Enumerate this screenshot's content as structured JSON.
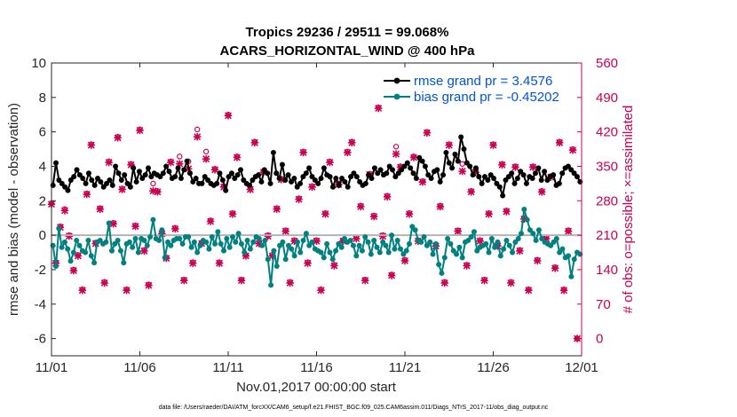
{
  "chart_data": {
    "type": "line",
    "title": "Tropics 29236 / 29511 = 99.068%",
    "subtitle": "ACARS_HORIZONTAL_WIND @ 400 hPa",
    "xlabel": "Nov.01,2017 00:00:00 start",
    "ylabel_left": "rmse and bias (model - observation)",
    "ylabel_right": "# of obs: o=possible; ×=assimilated",
    "footnote": "data file: /Users/raeder/DAI/ATM_forcXX/CAM6_setup/f.e21.FHIST_BGC.f09_025.CAM6assim.011/Diags_NTrS_2017-11/obs_diag_output.nc",
    "xlim": [
      0,
      30
    ],
    "x_ticks": [
      0,
      5,
      10,
      15,
      20,
      25,
      30
    ],
    "x_tick_labels": [
      "11/01",
      "11/06",
      "11/11",
      "11/16",
      "11/21",
      "11/26",
      "12/01"
    ],
    "ylim_left": [
      -7,
      10
    ],
    "y_ticks_left": [
      -6,
      -4,
      -2,
      0,
      2,
      4,
      6,
      8,
      10
    ],
    "ylim_right": [
      -35,
      560
    ],
    "y_ticks_right": [
      0,
      70,
      140,
      210,
      280,
      350,
      420,
      490,
      560
    ],
    "zero_line": 0,
    "colors": {
      "rmse": "#000000",
      "bias": "#008080",
      "obs": "#cc0052",
      "zero": "#b3b3b3"
    },
    "series": [
      {
        "name": "rmse grand pr = 3.4576",
        "axis": "left",
        "color": "#000000",
        "values": [
          2.9,
          4.2,
          3.2,
          3.0,
          2.8,
          2.6,
          3.2,
          3.4,
          3.8,
          3.5,
          3.3,
          3.0,
          3.6,
          3.2,
          2.9,
          3.3,
          3.1,
          2.8,
          3.0,
          3.2,
          2.9,
          4.0,
          3.6,
          3.2,
          3.5,
          3.0,
          2.8,
          3.9,
          3.1,
          3.7,
          3.3,
          3.5,
          3.9,
          3.4,
          3.6,
          3.5,
          3.4,
          3.6,
          4.0,
          3.7,
          3.3,
          3.4,
          3.9,
          3.3,
          3.8,
          4.3,
          3.6,
          3.1,
          3.3,
          3.0,
          3.0,
          3.4,
          3.2,
          3.0,
          2.9,
          3.0,
          3.6,
          3.2,
          2.6,
          3.4,
          3.6,
          3.3,
          3.5,
          3.8,
          3.2,
          3.0,
          2.9,
          3.2,
          3.4,
          3.5,
          3.1,
          3.8,
          3.6,
          3.0,
          4.8,
          3.6,
          3.3,
          4.1,
          3.2,
          3.5,
          3.1,
          3.3,
          2.8,
          3.0,
          3.4,
          3.6,
          3.9,
          3.4,
          3.2,
          3.0,
          3.3,
          3.9,
          3.5,
          3.4,
          2.8,
          3.3,
          2.9,
          3.3,
          3.1,
          2.8,
          3.4,
          3.6,
          3.4,
          3.1,
          2.9,
          3.0,
          3.5,
          3.3,
          3.9,
          3.6,
          3.8,
          3.5,
          3.6,
          4.0,
          3.8,
          3.4,
          3.6,
          3.8,
          4.0,
          4.2,
          3.9,
          3.6,
          3.3,
          4.5,
          4.3,
          4.0,
          3.5,
          3.3,
          3.7,
          3.8,
          3.1,
          3.5,
          4.8,
          4.2,
          3.9,
          4.7,
          4.3,
          5.7,
          5.0,
          4.2,
          4.0,
          3.5,
          3.9,
          3.4,
          3.0,
          3.4,
          3.2,
          3.5,
          3.3,
          3.0,
          2.8,
          2.3,
          3.2,
          3.4,
          3.6,
          3.0,
          3.3,
          3.7,
          3.5,
          3.0,
          3.4,
          3.3,
          3.6,
          3.9,
          3.2,
          3.7,
          3.2,
          3.4,
          3.5,
          2.9,
          3.0,
          3.6,
          3.9,
          4.0,
          3.8,
          3.6,
          3.4,
          3.1
        ]
      },
      {
        "name": "bias grand pr = -0.45202",
        "axis": "left",
        "color": "#008080",
        "values": [
          -0.6,
          -1.8,
          0.4,
          -0.7,
          -0.4,
          -0.8,
          -1.5,
          -1.0,
          -0.3,
          -0.6,
          -0.9,
          -1.0,
          -0.3,
          -1.2,
          -1.6,
          -0.4,
          -0.3,
          -0.5,
          -0.4,
          0.7,
          -0.9,
          -0.5,
          -0.3,
          -0.9,
          -1.6,
          -0.5,
          -0.4,
          -0.7,
          -0.2,
          -1.0,
          -0.2,
          -0.3,
          -0.6,
          -0.1,
          0.9,
          -0.2,
          -0.3,
          0.3,
          -1.3,
          -0.4,
          -0.6,
          -0.3,
          -0.2,
          -0.2,
          -0.5,
          -0.1,
          -0.1,
          -0.7,
          -0.4,
          -1.0,
          -0.6,
          -0.3,
          -0.4,
          -0.8,
          -0.1,
          -0.5,
          0.2,
          -0.5,
          -0.9,
          -0.2,
          -0.7,
          -0.1,
          -0.4,
          0.1,
          -0.5,
          -1.0,
          -0.3,
          -0.8,
          -0.4,
          -0.1,
          -0.2,
          -0.6,
          -0.3,
          -1.4,
          -2.9,
          -0.9,
          -1.8,
          -0.6,
          -0.4,
          -1.4,
          -0.6,
          -0.8,
          -1.2,
          -0.4,
          -1.0,
          -0.3,
          0.1,
          -0.6,
          -0.4,
          -0.8,
          -0.9,
          -1.0,
          -1.3,
          -0.5,
          -1.0,
          -1.4,
          -0.9,
          -0.5,
          -0.7,
          -0.2,
          -0.4,
          -0.3,
          -0.6,
          -1.2,
          -0.6,
          -0.9,
          -0.1,
          -0.4,
          -1.1,
          -0.3,
          -0.7,
          -1.0,
          -0.4,
          -0.6,
          -1.0,
          0.0,
          -0.8,
          -0.3,
          -0.8,
          -1.1,
          -0.9,
          -0.5,
          0.5,
          0.3,
          -0.3,
          -0.4,
          -0.1,
          -0.6,
          -0.4,
          -1.1,
          -0.5,
          -1.7,
          -2.2,
          -1.3,
          -0.2,
          -0.5,
          -0.9,
          -1.1,
          -0.7,
          -1.3,
          -0.4,
          -0.3,
          -0.1,
          0.2,
          -0.9,
          -0.7,
          -0.6,
          -0.5,
          -1.0,
          -0.2,
          -0.7,
          -0.4,
          -1.2,
          -0.8,
          -0.3,
          -0.6,
          -1.0,
          -0.4,
          -0.2,
          0.1,
          1.5,
          0.9,
          0.3,
          0.1,
          -0.3,
          0.3,
          -0.2,
          -0.4,
          -0.5,
          -0.6,
          -0.4,
          -0.2,
          -1.0,
          -0.8,
          -1.3,
          -1.2,
          -2.4,
          -1.4,
          -1.0,
          -1.1
        ]
      }
    ],
    "obs_possible": [
      [
        0.0,
        275
      ],
      [
        0.25,
        155
      ],
      [
        0.5,
        228
      ],
      [
        0.75,
        263
      ],
      [
        1.0,
        210
      ],
      [
        1.25,
        140
      ],
      [
        1.5,
        170
      ],
      [
        1.75,
        100
      ],
      [
        2.0,
        295
      ],
      [
        2.25,
        395
      ],
      [
        2.5,
        195
      ],
      [
        2.75,
        265
      ],
      [
        3.0,
        115
      ],
      [
        3.25,
        360
      ],
      [
        3.5,
        235
      ],
      [
        3.75,
        410
      ],
      [
        4.0,
        305
      ],
      [
        4.25,
        100
      ],
      [
        4.5,
        355
      ],
      [
        4.75,
        230
      ],
      [
        5.0,
        425
      ],
      [
        5.25,
        180
      ],
      [
        5.5,
        110
      ],
      [
        5.75,
        315
      ],
      [
        6.0,
        300
      ],
      [
        6.25,
        215
      ],
      [
        6.5,
        165
      ],
      [
        6.75,
        360
      ],
      [
        7.0,
        225
      ],
      [
        7.25,
        370
      ],
      [
        7.5,
        120
      ],
      [
        7.75,
        360
      ],
      [
        8.0,
        155
      ],
      [
        8.25,
        425
      ],
      [
        8.5,
        195
      ],
      [
        8.75,
        380
      ],
      [
        9.0,
        240
      ],
      [
        9.25,
        345
      ],
      [
        9.5,
        155
      ],
      [
        9.75,
        310
      ],
      [
        10.0,
        455
      ],
      [
        10.25,
        255
      ],
      [
        10.5,
        370
      ],
      [
        10.75,
        120
      ],
      [
        11.0,
        170
      ],
      [
        11.25,
        305
      ],
      [
        11.5,
        400
      ],
      [
        11.75,
        195
      ],
      [
        12.0,
        340
      ],
      [
        12.25,
        210
      ],
      [
        12.5,
        170
      ],
      [
        12.75,
        265
      ],
      [
        13.0,
        325
      ],
      [
        13.25,
        220
      ],
      [
        13.5,
        115
      ],
      [
        13.75,
        200
      ],
      [
        14.0,
        285
      ],
      [
        14.25,
        380
      ],
      [
        14.5,
        155
      ],
      [
        14.75,
        310
      ],
      [
        15.0,
        200
      ],
      [
        15.25,
        100
      ],
      [
        15.5,
        255
      ],
      [
        15.75,
        360
      ],
      [
        16.0,
        150
      ],
      [
        16.25,
        315
      ],
      [
        16.5,
        200
      ],
      [
        16.75,
        380
      ],
      [
        17.0,
        400
      ],
      [
        17.25,
        205
      ],
      [
        17.5,
        270
      ],
      [
        17.75,
        120
      ],
      [
        18.0,
        335
      ],
      [
        18.25,
        250
      ],
      [
        18.5,
        470
      ],
      [
        18.75,
        210
      ],
      [
        19.0,
        290
      ],
      [
        19.25,
        130
      ],
      [
        19.5,
        390
      ],
      [
        19.75,
        350
      ],
      [
        20.0,
        160
      ],
      [
        20.25,
        255
      ],
      [
        20.5,
        370
      ],
      [
        20.75,
        200
      ],
      [
        21.0,
        320
      ],
      [
        21.25,
        420
      ],
      [
        21.75,
        190
      ],
      [
        22.0,
        270
      ],
      [
        22.25,
        115
      ],
      [
        22.5,
        395
      ],
      [
        23.0,
        220
      ],
      [
        23.25,
        355
      ],
      [
        23.5,
        150
      ],
      [
        23.75,
        300
      ],
      [
        24.0,
        340
      ],
      [
        24.25,
        200
      ],
      [
        24.5,
        120
      ],
      [
        24.75,
        255
      ],
      [
        25.0,
        395
      ],
      [
        25.25,
        190
      ],
      [
        25.5,
        355
      ],
      [
        25.75,
        260
      ],
      [
        26.0,
        115
      ],
      [
        26.25,
        350
      ],
      [
        26.5,
        180
      ],
      [
        26.75,
        245
      ],
      [
        27.0,
        100
      ],
      [
        27.25,
        350
      ],
      [
        27.5,
        160
      ],
      [
        27.75,
        300
      ],
      [
        28.0,
        205
      ],
      [
        28.25,
        330
      ],
      [
        28.5,
        145
      ],
      [
        28.75,
        400
      ],
      [
        29.0,
        100
      ],
      [
        29.25,
        220
      ],
      [
        29.5,
        385
      ],
      [
        29.75,
        0
      ]
    ],
    "obs_assimilated": [
      [
        0.0,
        273
      ],
      [
        0.25,
        153
      ],
      [
        0.5,
        226
      ],
      [
        0.75,
        260
      ],
      [
        1.0,
        208
      ],
      [
        1.25,
        138
      ],
      [
        1.5,
        168
      ],
      [
        1.75,
        98
      ],
      [
        2.0,
        293
      ],
      [
        2.25,
        393
      ],
      [
        2.5,
        193
      ],
      [
        2.75,
        263
      ],
      [
        3.0,
        113
      ],
      [
        3.25,
        358
      ],
      [
        3.5,
        233
      ],
      [
        3.75,
        408
      ],
      [
        4.0,
        303
      ],
      [
        4.25,
        98
      ],
      [
        4.5,
        353
      ],
      [
        4.75,
        228
      ],
      [
        5.0,
        423
      ],
      [
        5.25,
        178
      ],
      [
        5.5,
        108
      ],
      [
        5.75,
        300
      ],
      [
        6.0,
        298
      ],
      [
        6.25,
        213
      ],
      [
        6.5,
        163
      ],
      [
        6.75,
        358
      ],
      [
        7.0,
        223
      ],
      [
        7.25,
        355
      ],
      [
        7.5,
        118
      ],
      [
        7.75,
        345
      ],
      [
        8.0,
        153
      ],
      [
        8.25,
        410
      ],
      [
        8.5,
        193
      ],
      [
        8.75,
        365
      ],
      [
        9.0,
        238
      ],
      [
        9.25,
        343
      ],
      [
        9.5,
        153
      ],
      [
        9.75,
        308
      ],
      [
        10.0,
        453
      ],
      [
        10.25,
        253
      ],
      [
        10.5,
        368
      ],
      [
        10.75,
        118
      ],
      [
        11.0,
        168
      ],
      [
        11.25,
        303
      ],
      [
        11.5,
        398
      ],
      [
        11.75,
        193
      ],
      [
        12.0,
        338
      ],
      [
        12.25,
        208
      ],
      [
        12.5,
        168
      ],
      [
        12.75,
        263
      ],
      [
        13.0,
        323
      ],
      [
        13.25,
        218
      ],
      [
        13.5,
        113
      ],
      [
        13.75,
        198
      ],
      [
        14.0,
        283
      ],
      [
        14.25,
        378
      ],
      [
        14.5,
        153
      ],
      [
        14.75,
        308
      ],
      [
        15.0,
        198
      ],
      [
        15.25,
        98
      ],
      [
        15.5,
        253
      ],
      [
        15.75,
        358
      ],
      [
        16.0,
        148
      ],
      [
        16.25,
        313
      ],
      [
        16.5,
        198
      ],
      [
        16.75,
        378
      ],
      [
        17.0,
        398
      ],
      [
        17.25,
        203
      ],
      [
        17.5,
        268
      ],
      [
        17.75,
        118
      ],
      [
        18.0,
        333
      ],
      [
        18.25,
        248
      ],
      [
        18.5,
        468
      ],
      [
        18.75,
        208
      ],
      [
        19.0,
        288
      ],
      [
        19.25,
        128
      ],
      [
        19.5,
        375
      ],
      [
        19.75,
        348
      ],
      [
        20.0,
        158
      ],
      [
        20.25,
        253
      ],
      [
        20.5,
        368
      ],
      [
        20.75,
        198
      ],
      [
        21.0,
        318
      ],
      [
        21.25,
        418
      ],
      [
        21.75,
        188
      ],
      [
        22.0,
        268
      ],
      [
        22.25,
        113
      ],
      [
        22.5,
        393
      ],
      [
        23.0,
        218
      ],
      [
        23.25,
        340
      ],
      [
        23.5,
        148
      ],
      [
        23.75,
        298
      ],
      [
        24.0,
        338
      ],
      [
        24.25,
        198
      ],
      [
        24.5,
        118
      ],
      [
        24.75,
        253
      ],
      [
        25.0,
        393
      ],
      [
        25.25,
        188
      ],
      [
        25.5,
        353
      ],
      [
        25.75,
        258
      ],
      [
        26.0,
        113
      ],
      [
        26.25,
        348
      ],
      [
        26.5,
        178
      ],
      [
        26.75,
        243
      ],
      [
        27.0,
        98
      ],
      [
        27.25,
        348
      ],
      [
        27.5,
        158
      ],
      [
        27.75,
        298
      ],
      [
        28.0,
        203
      ],
      [
        28.25,
        328
      ],
      [
        28.5,
        143
      ],
      [
        28.75,
        398
      ],
      [
        29.0,
        98
      ],
      [
        29.25,
        218
      ],
      [
        29.5,
        383
      ],
      [
        29.75,
        0
      ]
    ]
  }
}
